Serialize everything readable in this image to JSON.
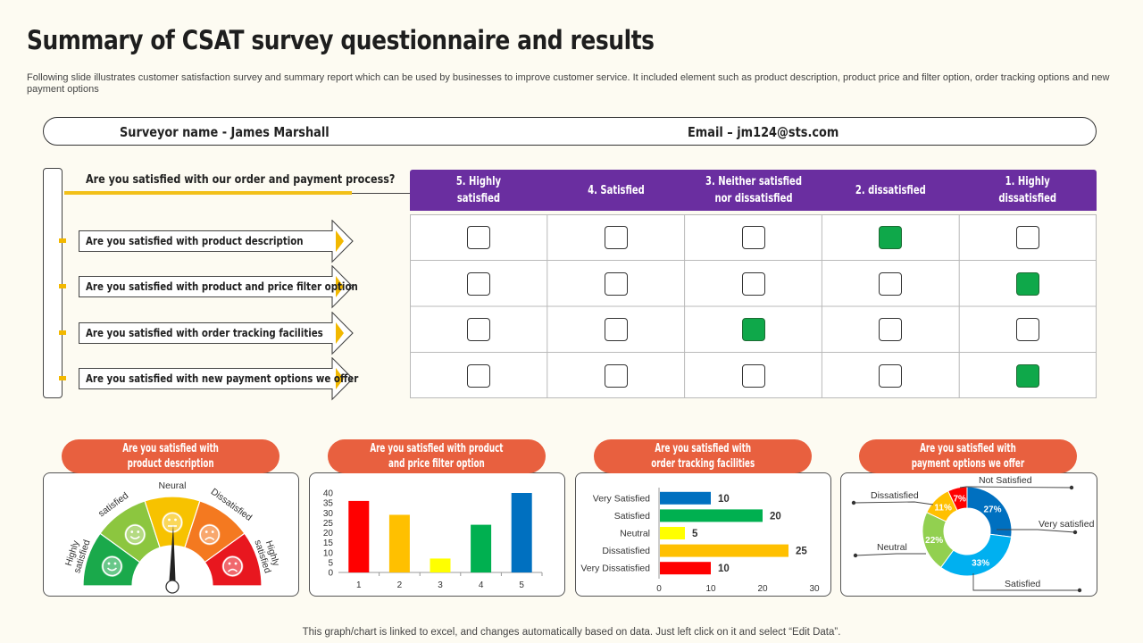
{
  "title": "Summary of CSAT survey questionnaire and results",
  "subtitle": "Following slide illustrates customer satisfaction survey and summary report which can be used by businesses to improve customer service. It included element such as product description, product price and filter option, order tracking options and new payment options",
  "surveyor": {
    "name_label": "Surveyor name -  James Marshall",
    "email_label": "Email – jm124@sts.com"
  },
  "main_question": "Are you satisfied with our order and payment process?",
  "questions": [
    {
      "label": "Are you satisfied with product description",
      "selected": 3
    },
    {
      "label": "Are you satisfied with product and price filter option",
      "selected": 4
    },
    {
      "label": "Are you satisfied with order tracking facilities",
      "selected": 2
    },
    {
      "label": "Are you satisfied with new payment options we offer",
      "selected": 4
    }
  ],
  "ratings": [
    {
      "line1": "5. Highly",
      "line2": "satisfied"
    },
    {
      "line1": "4. Satisfied",
      "line2": ""
    },
    {
      "line1": "3. Neither satisfied",
      "line2": "nor dissatisfied"
    },
    {
      "line1": "2. dissatisfied",
      "line2": ""
    },
    {
      "line1": "1. Highly",
      "line2": "dissatisfied"
    }
  ],
  "panels": [
    {
      "line1": "Are you satisfied with",
      "line2": "product description"
    },
    {
      "line1": "Are you satisfied with product",
      "line2": "and price filter option"
    },
    {
      "line1": "Are you satisfied with",
      "line2": "order tracking facilities"
    },
    {
      "line1": "Are you satisfied with",
      "line2": "payment options we offer"
    }
  ],
  "gauge": {
    "segments": [
      {
        "label": "Highly satisfied",
        "line1": "Highly",
        "line2": "satisfied",
        "color": "#1aa94b"
      },
      {
        "label": "satisfied",
        "line1": "satisfied",
        "line2": "",
        "color": "#8cc63f"
      },
      {
        "label": "Neural",
        "line1": "Neural",
        "line2": "",
        "color": "#f7c200"
      },
      {
        "label": "Dissatisfied",
        "line1": "Dissatisfied",
        "line2": "",
        "color": "#f47920"
      },
      {
        "label": "Highly satisfied",
        "line1": "Highly",
        "line2": "satisfied",
        "color": "#e8171f"
      }
    ]
  },
  "colors": {
    "accent_purple": "#6a2ea0",
    "pill_orange": "#e8603f",
    "check_green": "#0fa84a",
    "underline_yellow": "#f2c018"
  },
  "chart_data": [
    {
      "type": "bar",
      "categories": [
        "1",
        "2",
        "3",
        "4",
        "5"
      ],
      "values": [
        36,
        29,
        7,
        24,
        40
      ],
      "colors": [
        "#ff0000",
        "#ffc000",
        "#ffff00",
        "#00b050",
        "#0070c0"
      ],
      "ylim": [
        0,
        40
      ],
      "yticks": [
        0,
        5,
        10,
        15,
        20,
        25,
        30,
        35,
        40
      ]
    },
    {
      "type": "bar",
      "orientation": "horizontal",
      "categories": [
        "Very Satisfied",
        "Satisfied",
        "Neutral",
        "Dissatisfied",
        "Very Dissatisfied"
      ],
      "values": [
        10,
        20,
        5,
        25,
        10
      ],
      "colors": [
        "#0070c0",
        "#00b050",
        "#ffff00",
        "#ffc000",
        "#ff0000"
      ],
      "xlim": [
        0,
        30
      ],
      "xticks": [
        0,
        10,
        20,
        30
      ]
    },
    {
      "type": "pie",
      "donut": true,
      "slices": [
        {
          "label": "Very satisfied",
          "value": 27,
          "pct_label": "27%",
          "color": "#0070c0"
        },
        {
          "label": "Satisfied",
          "value": 33,
          "pct_label": "33%",
          "color": "#00b0f0"
        },
        {
          "label": "Neutral",
          "value": 22,
          "pct_label": "22%",
          "color": "#92d050"
        },
        {
          "label": "Dissatisfied",
          "value": 11,
          "pct_label": "11%",
          "color": "#ffc000"
        },
        {
          "label": "Not Satisfied",
          "value": 7,
          "pct_label": "7%",
          "color": "#ff0000"
        }
      ]
    }
  ],
  "footnote": "This graph/chart is linked to excel,  and changes automatically based on data. Just left click on it and select “Edit Data”."
}
